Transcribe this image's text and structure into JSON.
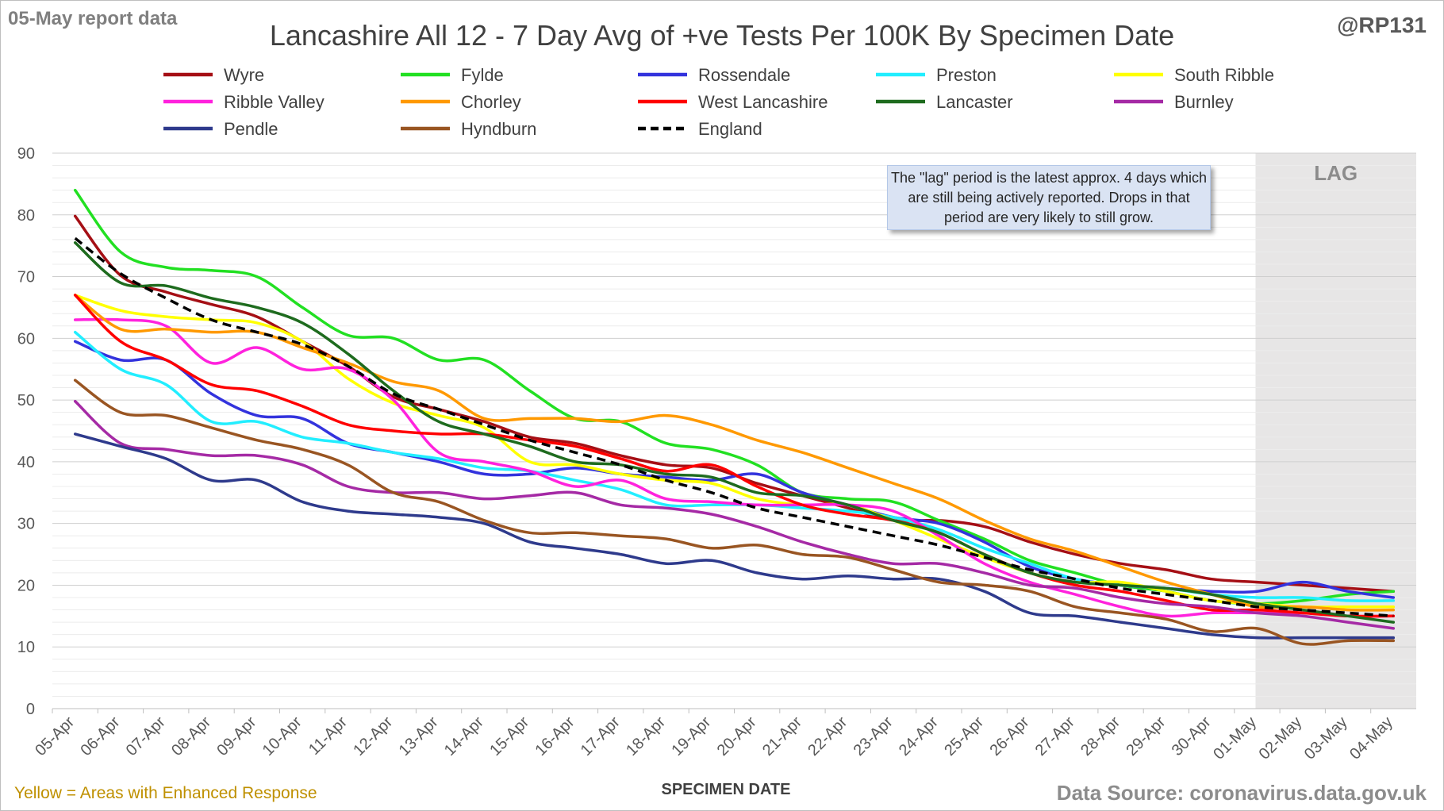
{
  "report_label": "05-May report data",
  "handle": "@RP131",
  "footer_note": "Yellow = Areas with Enhanced Response",
  "source": "Data Source: coronavirus.data.gov.uk",
  "lag_note": "The \"lag\" period is the latest approx. 4 days which are still being actively reported. Drops in that period are very likely to still grow.",
  "chart_data": {
    "type": "line",
    "title": "Lancashire All 12 - 7 Day Avg of +ve Tests Per 100K By Specimen Date",
    "xlabel": "SPECIMEN DATE",
    "ylabel": "",
    "ylim": [
      0,
      90
    ],
    "yticks": [
      0,
      10,
      20,
      30,
      40,
      50,
      60,
      70,
      80,
      90
    ],
    "grid": true,
    "legend_position": "top",
    "shaded_region": {
      "label": "LAG",
      "from": "01-May",
      "to": "04-May",
      "color": "#e7e6e6"
    },
    "categories": [
      "05-Apr",
      "06-Apr",
      "07-Apr",
      "08-Apr",
      "09-Apr",
      "10-Apr",
      "11-Apr",
      "12-Apr",
      "13-Apr",
      "14-Apr",
      "15-Apr",
      "16-Apr",
      "17-Apr",
      "18-Apr",
      "19-Apr",
      "20-Apr",
      "21-Apr",
      "22-Apr",
      "23-Apr",
      "24-Apr",
      "25-Apr",
      "26-Apr",
      "27-Apr",
      "28-Apr",
      "29-Apr",
      "30-Apr",
      "01-May",
      "02-May",
      "03-May",
      "04-May"
    ],
    "series": [
      {
        "name": "Wyre",
        "color": "#a50f15",
        "dash": false,
        "values": [
          79.8,
          70.2,
          67.5,
          65.5,
          63.5,
          59.5,
          55.5,
          50.5,
          48.5,
          46.5,
          44.0,
          43.0,
          41.0,
          39.5,
          39.0,
          36.5,
          34.5,
          32.5,
          30.5,
          30.5,
          29.5,
          27.0,
          25.0,
          23.5,
          22.5,
          21.0,
          20.5,
          20.0,
          19.5,
          19.0
        ]
      },
      {
        "name": "Fylde",
        "color": "#22e022",
        "dash": false,
        "values": [
          84.0,
          74.0,
          71.5,
          71.0,
          70.0,
          65.0,
          60.5,
          60.0,
          56.5,
          56.5,
          51.5,
          47.0,
          46.5,
          43.0,
          42.0,
          39.5,
          35.0,
          34.0,
          33.5,
          30.5,
          27.5,
          24.0,
          22.0,
          20.0,
          19.0,
          17.5,
          17.0,
          17.5,
          18.5,
          19.0
        ]
      },
      {
        "name": "Rossendale",
        "color": "#3333dd",
        "dash": false,
        "values": [
          59.5,
          56.5,
          56.5,
          51.0,
          47.5,
          47.0,
          43.0,
          41.5,
          40.0,
          38.0,
          38.0,
          39.0,
          38.0,
          37.5,
          37.0,
          38.0,
          35.0,
          33.0,
          31.0,
          30.0,
          27.0,
          23.0,
          21.0,
          20.0,
          19.5,
          19.0,
          19.0,
          20.5,
          19.0,
          18.0
        ]
      },
      {
        "name": "Preston",
        "color": "#22eeff",
        "dash": false,
        "values": [
          61.0,
          55.0,
          52.5,
          46.5,
          46.5,
          44.0,
          43.0,
          41.5,
          40.5,
          39.0,
          38.5,
          37.0,
          35.5,
          33.0,
          33.0,
          33.0,
          32.5,
          32.0,
          31.0,
          29.0,
          26.0,
          23.5,
          21.0,
          20.0,
          19.5,
          18.5,
          18.0,
          18.0,
          17.5,
          17.5
        ]
      },
      {
        "name": "South Ribble",
        "color": "#ffff00",
        "dash": false,
        "values": [
          67.0,
          64.5,
          63.5,
          63.0,
          62.5,
          59.5,
          53.5,
          49.5,
          47.5,
          45.5,
          40.0,
          39.5,
          38.0,
          37.0,
          36.5,
          34.0,
          33.0,
          33.0,
          30.5,
          27.5,
          24.5,
          22.0,
          20.5,
          20.5,
          19.0,
          17.5,
          17.0,
          16.5,
          16.5,
          16.5
        ]
      },
      {
        "name": "Ribble Valley",
        "color": "#ff22dd",
        "dash": false,
        "values": [
          63.0,
          63.0,
          62.0,
          56.0,
          58.5,
          55.0,
          55.0,
          50.0,
          41.5,
          40.0,
          38.5,
          36.0,
          37.0,
          34.0,
          33.5,
          33.0,
          33.0,
          33.0,
          32.0,
          28.0,
          23.5,
          20.5,
          18.5,
          16.5,
          15.0,
          15.5,
          15.5,
          15.5,
          15.0,
          15.0
        ]
      },
      {
        "name": "Chorley",
        "color": "#ff9900",
        "dash": false,
        "values": [
          67.0,
          61.5,
          61.5,
          61.0,
          61.0,
          58.5,
          56.0,
          53.0,
          51.5,
          47.0,
          47.0,
          47.0,
          46.5,
          47.5,
          46.0,
          43.5,
          41.5,
          39.0,
          36.5,
          34.0,
          30.5,
          27.5,
          25.5,
          23.0,
          20.5,
          18.5,
          16.5,
          16.5,
          16.0,
          16.0
        ]
      },
      {
        "name": "West Lancashire",
        "color": "#ff0000",
        "dash": false,
        "values": [
          67.0,
          59.5,
          56.5,
          52.5,
          51.5,
          49.0,
          46.0,
          45.0,
          44.5,
          44.5,
          43.5,
          42.5,
          40.5,
          38.5,
          39.5,
          36.0,
          33.0,
          31.5,
          30.5,
          28.5,
          25.0,
          22.0,
          20.0,
          19.0,
          17.5,
          16.0,
          16.0,
          15.5,
          15.0,
          15.0
        ]
      },
      {
        "name": "Lancaster",
        "color": "#1e6b1e",
        "dash": false,
        "values": [
          75.5,
          69.0,
          68.5,
          66.5,
          65.0,
          62.5,
          57.5,
          51.5,
          46.5,
          44.5,
          42.5,
          40.0,
          39.5,
          38.0,
          37.5,
          35.0,
          34.5,
          33.0,
          30.5,
          28.5,
          25.0,
          22.0,
          20.5,
          20.0,
          19.5,
          18.5,
          17.0,
          16.0,
          15.0,
          14.0
        ]
      },
      {
        "name": "Burnley",
        "color": "#a52aa5",
        "dash": false,
        "values": [
          49.8,
          43.0,
          42.0,
          41.0,
          41.0,
          39.5,
          36.0,
          35.0,
          35.0,
          34.0,
          34.5,
          35.0,
          33.0,
          32.5,
          31.5,
          29.5,
          27.0,
          25.0,
          23.5,
          23.5,
          22.0,
          20.0,
          19.5,
          18.0,
          17.0,
          16.5,
          15.5,
          15.0,
          14.0,
          13.0
        ]
      },
      {
        "name": "Pendle",
        "color": "#2e3a8c",
        "dash": false,
        "values": [
          44.5,
          42.5,
          40.5,
          37.0,
          37.0,
          33.5,
          32.0,
          31.5,
          31.0,
          30.0,
          27.0,
          26.0,
          25.0,
          23.5,
          24.0,
          22.0,
          21.0,
          21.5,
          21.0,
          21.0,
          19.0,
          15.5,
          15.0,
          14.0,
          13.0,
          12.0,
          11.5,
          11.5,
          11.5,
          11.5
        ]
      },
      {
        "name": "Hyndburn",
        "color": "#995522",
        "dash": false,
        "values": [
          53.2,
          48.0,
          47.5,
          45.5,
          43.5,
          42.0,
          39.5,
          35.0,
          33.5,
          30.5,
          28.5,
          28.5,
          28.0,
          27.5,
          26.0,
          26.5,
          25.0,
          24.5,
          22.5,
          20.5,
          20.0,
          19.0,
          16.5,
          15.5,
          14.5,
          12.5,
          13.0,
          10.5,
          11.0,
          11.0
        ]
      },
      {
        "name": "England",
        "color": "#000000",
        "dash": true,
        "values": [
          76.2,
          70.5,
          66.5,
          63.0,
          61.0,
          59.0,
          55.5,
          51.0,
          48.5,
          46.0,
          43.5,
          41.5,
          39.5,
          37.0,
          35.0,
          32.5,
          31.0,
          29.5,
          28.0,
          26.5,
          24.5,
          22.5,
          21.0,
          19.5,
          18.5,
          17.5,
          16.5,
          16.0,
          15.5,
          15.0
        ]
      }
    ]
  }
}
